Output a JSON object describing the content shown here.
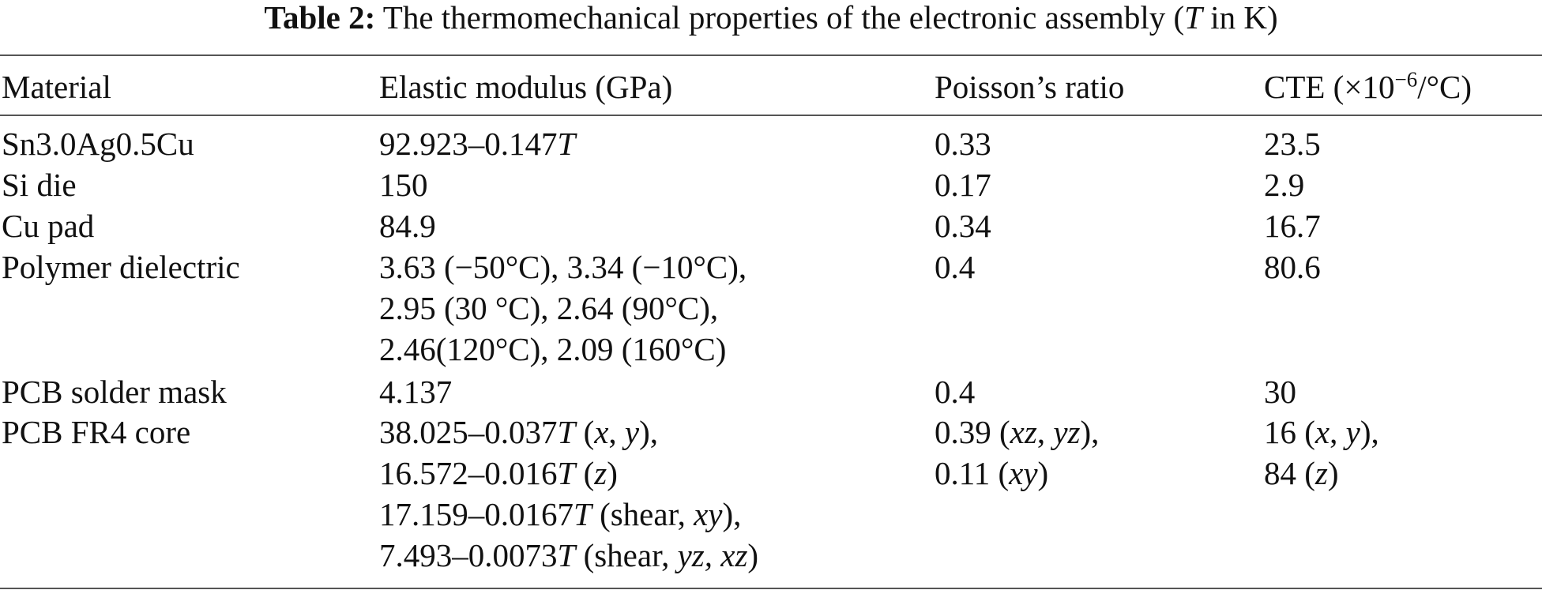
{
  "caption": {
    "label": "Table 2:",
    "text_before": " The thermomechanical properties of the electronic assembly (",
    "var": "T",
    "text_after": " in K)"
  },
  "headers": {
    "material": "Material",
    "modulus": "Elastic modulus (GPa)",
    "poisson": "Poisson’s ratio",
    "cte_prefix": "CTE (×10",
    "cte_exp": "−6",
    "cte_suffix": "/°C)"
  },
  "rows": [
    {
      "material": "Sn3.0Ag0.5Cu",
      "modulus": [
        "92.923–0.147"
      ],
      "modulus_var": "T",
      "poisson": [
        "0.33"
      ],
      "cte": [
        "23.5"
      ]
    },
    {
      "material": "Si die",
      "modulus": [
        "150"
      ],
      "poisson": [
        "0.17"
      ],
      "cte": [
        "2.9"
      ]
    },
    {
      "material": "Cu pad",
      "modulus": [
        "84.9"
      ],
      "poisson": [
        "0.34"
      ],
      "cte": [
        "16.7"
      ]
    },
    {
      "material": "Polymer dielectric",
      "modulus": [
        "3.63 (−50°C), 3.34 (−10°C),",
        "2.95 (30 °C), 2.64 (90°C),",
        "2.46(120°C), 2.09 (160°C)"
      ],
      "poisson": [
        "0.4"
      ],
      "cte": [
        "80.6"
      ]
    },
    {
      "material": "PCB solder mask",
      "modulus": [
        "4.137"
      ],
      "poisson": [
        "0.4"
      ],
      "cte": [
        "30"
      ]
    },
    {
      "material": "PCB FR4 core",
      "modulus_parts": [
        [
          "38.025–0.037",
          "T",
          " (",
          "x",
          ", ",
          "y",
          "),"
        ],
        [
          "16.572–0.016",
          "T",
          " (",
          "z",
          ")"
        ],
        [
          "17.159–0.0167",
          "T",
          " (shear, ",
          "xy",
          "),"
        ],
        [
          "7.493–0.0073",
          "T",
          " (shear, ",
          "yz, xz",
          ")"
        ]
      ],
      "poisson_parts": [
        [
          "0.39 (",
          "xz",
          ", ",
          "yz",
          "),"
        ],
        [
          "0.11 (",
          "xy",
          ")"
        ]
      ],
      "cte_parts": [
        [
          "16 (",
          "x",
          ", ",
          "y",
          "),"
        ],
        [
          "84 (",
          "z",
          ")"
        ]
      ]
    }
  ]
}
